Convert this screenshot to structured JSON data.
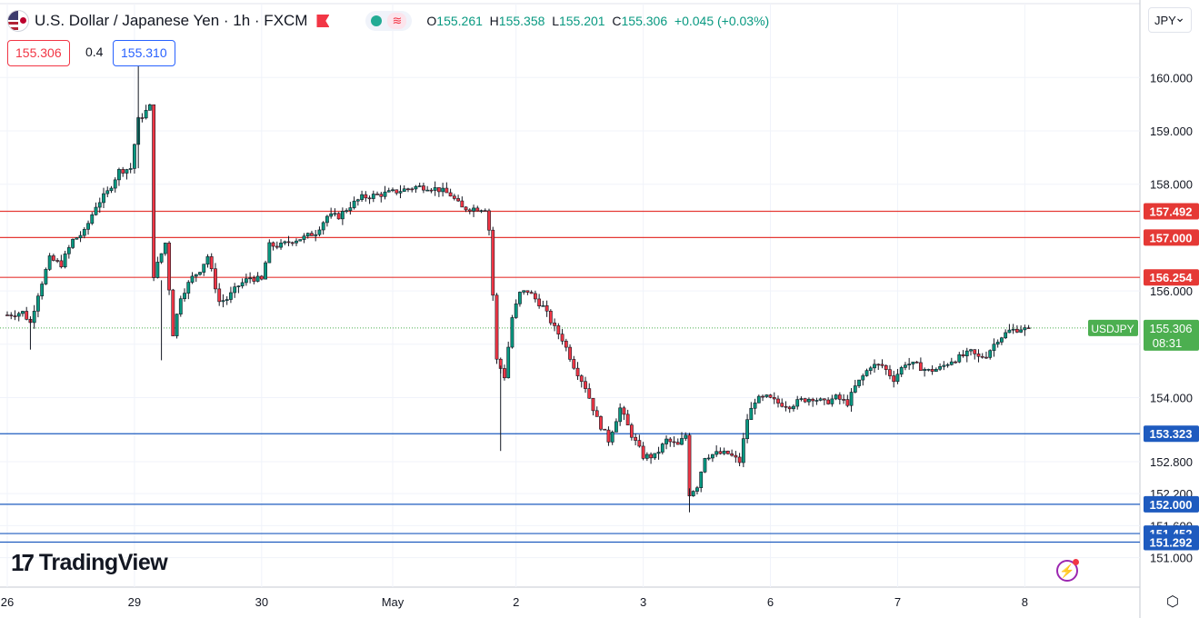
{
  "header": {
    "title": "U.S. Dollar / Japanese Yen · 1h · FXCM",
    "ohlc": {
      "o_label": "O",
      "o": "155.261",
      "h_label": "H",
      "h": "155.358",
      "l_label": "L",
      "l": "155.201",
      "c_label": "C",
      "c": "155.306",
      "change": "+0.045 (+0.03%)"
    },
    "sell_price": "155.306",
    "spread": "0.4",
    "buy_price": "155.310",
    "currency": "JPY",
    "brand": "TradingView"
  },
  "colors": {
    "up": "#089981",
    "down": "#f23645",
    "resistance": "#e53935",
    "support": "#1e5bbf",
    "last_price": "#4caf50"
  },
  "chart_data": {
    "type": "candlestick",
    "symbol": "USDJPY",
    "timeframe": "1h",
    "ylim": [
      151.0,
      161.3
    ],
    "y_ticks": [
      160.0,
      159.0,
      158.0,
      156.0,
      155.0,
      154.0,
      152.8,
      152.2,
      151.6,
      151.0
    ],
    "y_tick_labels": [
      "160.000",
      "159.000",
      "158.000",
      "156.000",
      "155.000",
      "154.000",
      "152.800",
      "152.200",
      "151.600",
      "151.000"
    ],
    "x_tick_labels": [
      "26",
      "29",
      "30",
      "May",
      "2",
      "3",
      "6",
      "7",
      "8"
    ],
    "x_tick_index": [
      0,
      33,
      66,
      100,
      132,
      165,
      198,
      231,
      264
    ],
    "horizontal_levels": [
      {
        "price": 157.492,
        "label": "157.492",
        "kind": "resistance"
      },
      {
        "price": 157.0,
        "label": "157.000",
        "kind": "resistance"
      },
      {
        "price": 156.254,
        "label": "156.254",
        "kind": "resistance"
      },
      {
        "price": 153.323,
        "label": "153.323",
        "kind": "support"
      },
      {
        "price": 152.0,
        "label": "152.000",
        "kind": "support"
      },
      {
        "price": 151.452,
        "label": "151.452",
        "kind": "support"
      },
      {
        "price": 151.292,
        "label": "151.292",
        "kind": "support"
      }
    ],
    "last_price": {
      "label": "USDJPY",
      "value": "155.306",
      "countdown": "08:31",
      "price": 155.306
    },
    "anchors": [
      [
        0,
        155.55
      ],
      [
        4,
        155.6
      ],
      [
        6,
        155.4
      ],
      [
        8,
        155.95
      ],
      [
        11,
        156.6
      ],
      [
        14,
        156.5
      ],
      [
        17,
        156.95
      ],
      [
        20,
        157.1
      ],
      [
        23,
        157.6
      ],
      [
        26,
        157.85
      ],
      [
        29,
        158.25
      ],
      [
        32,
        158.3
      ],
      [
        34,
        159.2
      ],
      [
        37,
        159.45
      ],
      [
        38,
        156.3
      ],
      [
        41,
        156.9
      ],
      [
        43,
        155.2
      ],
      [
        45,
        155.9
      ],
      [
        48,
        156.25
      ],
      [
        50,
        156.4
      ],
      [
        52,
        156.65
      ],
      [
        55,
        155.8
      ],
      [
        57,
        155.85
      ],
      [
        60,
        156.1
      ],
      [
        63,
        156.25
      ],
      [
        66,
        156.2
      ],
      [
        68,
        156.85
      ],
      [
        71,
        156.85
      ],
      [
        74,
        156.95
      ],
      [
        77,
        157.0
      ],
      [
        80,
        157.1
      ],
      [
        83,
        157.4
      ],
      [
        86,
        157.4
      ],
      [
        89,
        157.6
      ],
      [
        92,
        157.75
      ],
      [
        96,
        157.8
      ],
      [
        100,
        157.85
      ],
      [
        103,
        157.9
      ],
      [
        106,
        157.95
      ],
      [
        109,
        157.95
      ],
      [
        112,
        157.9
      ],
      [
        115,
        157.8
      ],
      [
        118,
        157.55
      ],
      [
        121,
        157.55
      ],
      [
        124,
        157.55
      ],
      [
        125,
        157.15
      ],
      [
        127,
        154.7
      ],
      [
        129,
        154.4
      ],
      [
        131,
        155.5
      ],
      [
        133,
        155.95
      ],
      [
        135,
        156.0
      ],
      [
        137,
        155.85
      ],
      [
        139,
        155.7
      ],
      [
        142,
        155.3
      ],
      [
        144,
        155.1
      ],
      [
        147,
        154.6
      ],
      [
        150,
        154.2
      ],
      [
        153,
        153.6
      ],
      [
        156,
        153.2
      ],
      [
        159,
        153.8
      ],
      [
        162,
        153.3
      ],
      [
        165,
        152.9
      ],
      [
        168,
        152.9
      ],
      [
        171,
        153.2
      ],
      [
        174,
        153.1
      ],
      [
        176,
        153.3
      ],
      [
        177,
        152.2
      ],
      [
        179,
        152.35
      ],
      [
        181,
        152.9
      ],
      [
        184,
        152.95
      ],
      [
        187,
        152.95
      ],
      [
        190,
        152.8
      ],
      [
        192,
        153.6
      ],
      [
        194,
        153.95
      ],
      [
        197,
        154.0
      ],
      [
        200,
        153.9
      ],
      [
        203,
        153.85
      ],
      [
        206,
        153.95
      ],
      [
        209,
        154.0
      ],
      [
        212,
        153.9
      ],
      [
        215,
        154.0
      ],
      [
        218,
        153.9
      ],
      [
        220,
        154.2
      ],
      [
        222,
        154.4
      ],
      [
        224,
        154.6
      ],
      [
        227,
        154.6
      ],
      [
        230,
        154.35
      ],
      [
        233,
        154.65
      ],
      [
        236,
        154.6
      ],
      [
        239,
        154.5
      ],
      [
        242,
        154.55
      ],
      [
        245,
        154.7
      ],
      [
        247,
        154.75
      ],
      [
        250,
        154.85
      ],
      [
        252,
        154.75
      ],
      [
        254,
        154.8
      ],
      [
        257,
        155.1
      ],
      [
        260,
        155.25
      ],
      [
        263,
        155.3
      ],
      [
        265,
        155.261
      ]
    ]
  }
}
